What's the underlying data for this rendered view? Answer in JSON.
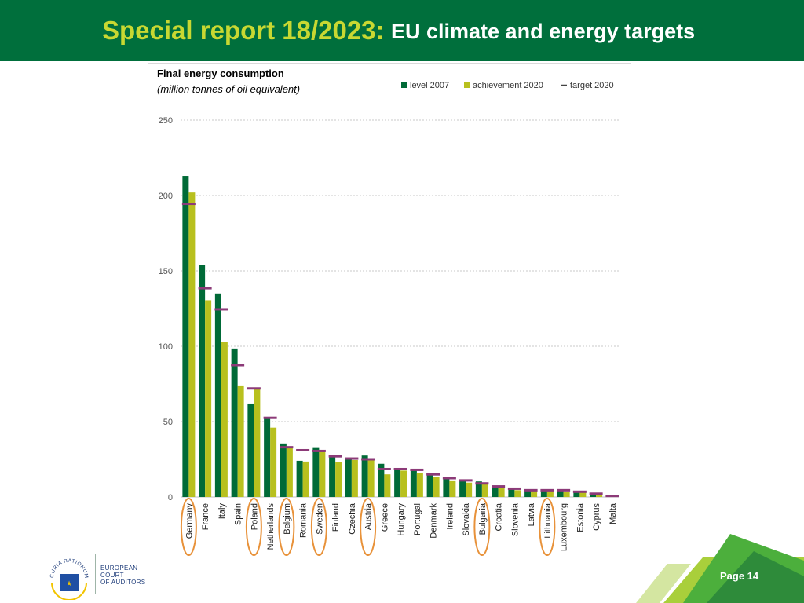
{
  "header": {
    "title_bold": "Special report 18/2023:",
    "title_rest": "EU climate and energy targets"
  },
  "logo": {
    "seal_text": "CURIA RATIONUM",
    "line1": "EUROPEAN",
    "line2": "COURT",
    "line3": "OF AUDITORS"
  },
  "footer": {
    "page_label": "Page 14"
  },
  "colors": {
    "header_bg": "#006f3c",
    "title_accent": "#c8d832",
    "bar_2007": "#006a37",
    "bar_2020": "#b8c01e",
    "target": "#8c3a78",
    "highlight_ellipse": "#e8923a"
  },
  "chart_data": {
    "type": "bar",
    "title": "Final energy consumption",
    "subtitle": "(million tonnes of oil equivalent)",
    "ylim": [
      0,
      250
    ],
    "yticks": [
      "0",
      "50",
      "100",
      "150",
      "200",
      "250"
    ],
    "ytick_values": [
      0,
      50,
      100,
      150,
      200,
      250
    ],
    "grid": true,
    "legend_position": "top-right",
    "categories": [
      "Germany",
      "France",
      "Italy",
      "Spain",
      "Poland",
      "Netherlands",
      "Belgium",
      "Romania",
      "Sweden",
      "Finland",
      "Czechia",
      "Austria",
      "Greece",
      "Hungary",
      "Portugal",
      "Denmark",
      "Ireland",
      "Slovakia",
      "Bulgaria",
      "Croatia",
      "Slovenia",
      "Latvia",
      "Lithuania",
      "Luxembourg",
      "Estonia",
      "Cyprus",
      "Malta"
    ],
    "highlighted": [
      "Germany",
      "Poland",
      "Belgium",
      "Sweden",
      "Austria",
      "Bulgaria",
      "Lithuania"
    ],
    "series": [
      {
        "name": "level 2007",
        "values": [
          213,
          154,
          135,
          98.5,
          62,
          52,
          35.5,
          24,
          33,
          27,
          25.5,
          27.5,
          22,
          18.5,
          18.5,
          15.5,
          13,
          11,
          10.3,
          7,
          5.5,
          4.5,
          4.8,
          4.3,
          3,
          2,
          0.5
        ]
      },
      {
        "name": "achievement 2020",
        "values": [
          202,
          130.5,
          103,
          74,
          72,
          46,
          32.5,
          23.5,
          30.5,
          23,
          24.5,
          25,
          15,
          17.5,
          16,
          13.5,
          11,
          9.5,
          9,
          6.5,
          4.5,
          4,
          4.5,
          3.5,
          3,
          1.8,
          0.6
        ]
      },
      {
        "name": "target 2020",
        "values": [
          194.5,
          138.5,
          124.5,
          87.5,
          72,
          52.5,
          33,
          31,
          30.5,
          27,
          25.5,
          25,
          18.5,
          18.5,
          18,
          15,
          12.5,
          11,
          9,
          7,
          5.5,
          4.5,
          4.5,
          4.5,
          3.5,
          2.2,
          0.7
        ]
      }
    ]
  }
}
